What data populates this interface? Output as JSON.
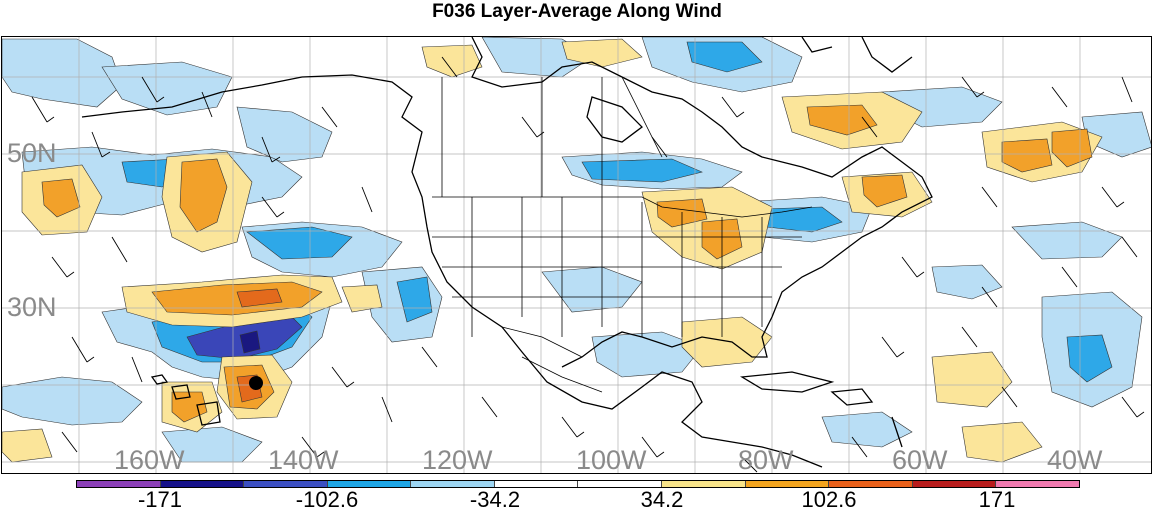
{
  "title": "F036 Layer-Average Along Wind",
  "latitude_labels": [
    "50N",
    "30N"
  ],
  "longitude_labels": [
    "160W",
    "140W",
    "120W",
    "100W",
    "80W",
    "60W",
    "40W"
  ],
  "colorbar": {
    "colors": [
      "#8b3fb8",
      "#16128a",
      "#3b4fc2",
      "#1ea6e6",
      "#9dd6f3",
      "#ffffff",
      "#ffffff",
      "#f8e48a",
      "#f2a41f",
      "#e8601a",
      "#b81d1d",
      "#f07ab0"
    ],
    "labels": [
      "-171",
      "-102.6",
      "-34.2",
      "34.2",
      "102.6",
      "171"
    ]
  },
  "map": {
    "storm_marker": "storm-center-dot",
    "colors": {
      "light_blue": "#b9def5",
      "blue": "#2ea8e8",
      "dark_blue": "#3a46b8",
      "navy": "#1a1880",
      "yellow": "#fbe59a",
      "orange": "#f2a12a",
      "dark_orange": "#e36a1c"
    }
  }
}
